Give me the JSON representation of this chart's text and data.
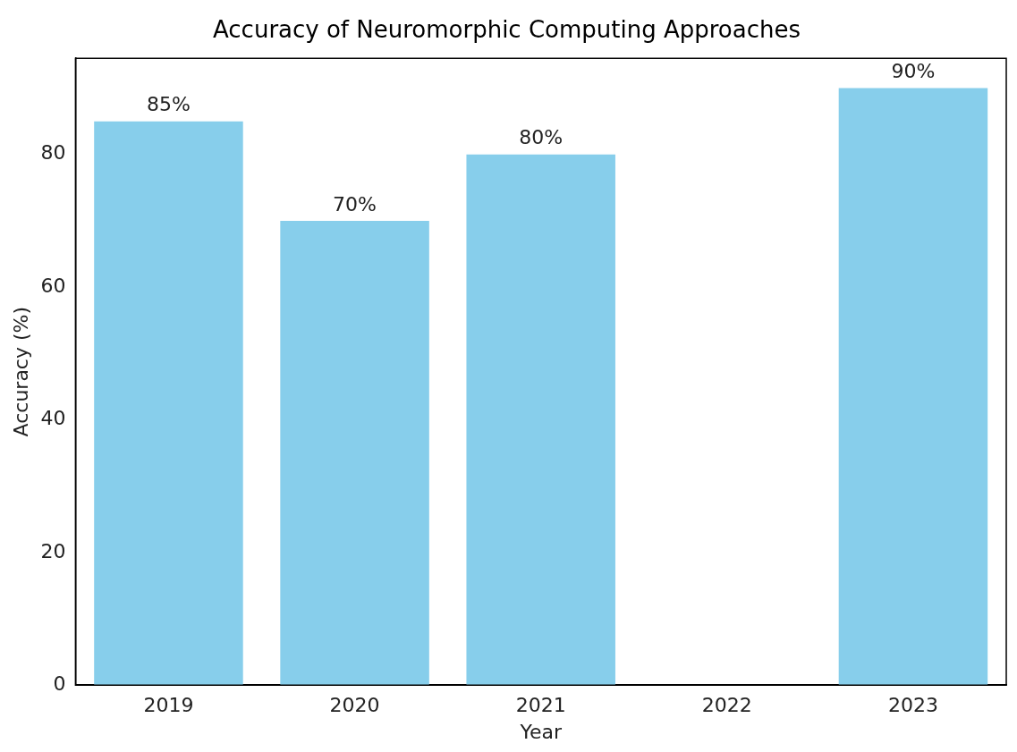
{
  "chart_data": {
    "type": "bar",
    "title": "Accuracy of Neuromorphic Computing Approaches",
    "xlabel": "Year",
    "ylabel": "Accuracy (%)",
    "categories": [
      "2019",
      "2020",
      "2021",
      "2022",
      "2023"
    ],
    "values": [
      85,
      70,
      80,
      null,
      90
    ],
    "value_labels": [
      "85%",
      "70%",
      "80%",
      null,
      "90%"
    ],
    "color": "#87ceeb",
    "ylim": [
      0,
      94.5
    ],
    "yticks": [
      0,
      20,
      40,
      60,
      80
    ],
    "grid": false,
    "legend": false
  }
}
